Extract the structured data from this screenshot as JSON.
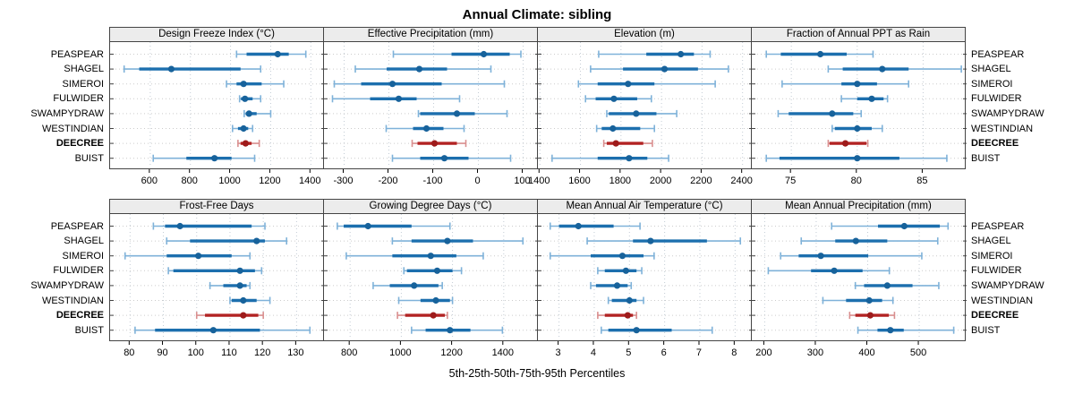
{
  "title": "Annual Climate: sibling",
  "xlabel": "5th-25th-50th-75th-95th Percentiles",
  "sites": [
    "PEASPEAR",
    "SHAGEL",
    "SIMEROI",
    "FULWIDER",
    "SWAMPYDRAW",
    "WESTINDIAN",
    "DEECREE",
    "BUIST"
  ],
  "highlight_site": "DEECREE",
  "colors": {
    "normal_range": "#7fb2d9",
    "normal_band": "#1c6fae",
    "normal_dot": "#17629b",
    "highlight_range": "#d98f8f",
    "highlight_band": "#b22222",
    "highlight_dot": "#9e1b1b",
    "panel_header_bg": "#ececec",
    "panel_border": "#444444",
    "grid_horizontal": "#cccccc",
    "grid_vertical": "#c3ccd5",
    "tick": "#000000"
  },
  "chart_data": {
    "type": "interval-dotplot",
    "note": "lattice-style percentile plot; each series value array is [p5, p25, p50, p75, p95]",
    "legend_position": "none",
    "grid": "dotted",
    "rows": [
      [
        {
          "title": "Design Freeze Index (°C)",
          "xlim": [
            400,
            1470
          ],
          "ticks": [
            600,
            800,
            1000,
            1200,
            1400
          ],
          "values": {
            "PEASPEAR": [
              1030,
              1080,
              1235,
              1290,
              1375
            ],
            "SHAGEL": [
              470,
              545,
              705,
              1050,
              1150
            ],
            "SIMEROI": [
              980,
              1030,
              1065,
              1155,
              1265
            ],
            "FULWIDER": [
              1045,
              1052,
              1072,
              1110,
              1150
            ],
            "SWAMPYDRAW": [
              1068,
              1076,
              1092,
              1130,
              1200
            ],
            "WESTINDIAN": [
              1010,
              1037,
              1065,
              1088,
              1110
            ],
            "DEECREE": [
              1037,
              1050,
              1075,
              1105,
              1143
            ],
            "BUIST": [
              615,
              780,
              920,
              1005,
              1120
            ]
          }
        },
        {
          "title": "Effective Precipitation (mm)",
          "xlim": [
            -345,
            135
          ],
          "ticks": [
            -300,
            -200,
            -100,
            0,
            100
          ],
          "values": {
            "PEASPEAR": [
              -190,
              -60,
              12,
              70,
              95
            ],
            "SHAGEL": [
              -275,
              -205,
              -132,
              -70,
              28
            ],
            "SIMEROI": [
              -322,
              -262,
              -192,
              -82,
              58
            ],
            "FULWIDER": [
              -326,
              -242,
              -178,
              -138,
              -42
            ],
            "SWAMPYDRAW": [
              -134,
              -130,
              -48,
              -8,
              64
            ],
            "WESTINDIAN": [
              -206,
              -146,
              -116,
              -78,
              -32
            ],
            "DEECREE": [
              -148,
              -136,
              -98,
              -48,
              -28
            ],
            "BUIST": [
              -192,
              -130,
              -76,
              -22,
              72
            ]
          }
        },
        {
          "title": "Elevation (m)",
          "xlim": [
            1390,
            2450
          ],
          "ticks": [
            1400,
            1600,
            1800,
            2000,
            2200,
            2400
          ],
          "values": {
            "PEASPEAR": [
              1690,
              1925,
              2095,
              2160,
              2240
            ],
            "SHAGEL": [
              1650,
              1810,
              2015,
              2180,
              2330
            ],
            "SIMEROI": [
              1590,
              1685,
              1835,
              1965,
              2265
            ],
            "FULWIDER": [
              1625,
              1675,
              1765,
              1880,
              1950
            ],
            "SWAMPYDRAW": [
              1730,
              1740,
              1875,
              1975,
              2075
            ],
            "WESTINDIAN": [
              1680,
              1705,
              1760,
              1895,
              1965
            ],
            "DEECREE": [
              1715,
              1730,
              1775,
              1910,
              1955
            ],
            "BUIST": [
              1460,
              1685,
              1840,
              1930,
              2035
            ]
          }
        },
        {
          "title": "Fraction of Annual PPT as Rain",
          "xlim": [
            72,
            88.3
          ],
          "ticks": [
            75,
            80,
            85
          ],
          "values": {
            "PEASPEAR": [
              73.1,
              74.2,
              77.2,
              79.2,
              81.2
            ],
            "SHAGEL": [
              77.8,
              78.9,
              81.9,
              83.9,
              87.9
            ],
            "SIMEROI": [
              74.3,
              78.8,
              80.0,
              81.5,
              83.9
            ],
            "FULWIDER": [
              78.8,
              80.0,
              81.1,
              82.0,
              82.3
            ],
            "SWAMPYDRAW": [
              74.0,
              74.8,
              78.1,
              79.7,
              80.3
            ],
            "WESTINDIAN": [
              78.1,
              78.3,
              80.0,
              81.1,
              81.9
            ],
            "DEECREE": [
              77.8,
              77.9,
              79.1,
              80.7,
              80.8
            ],
            "BUIST": [
              73.1,
              74.1,
              80.0,
              83.2,
              86.8
            ]
          }
        }
      ],
      [
        {
          "title": "Frost-Free Days",
          "xlim": [
            74,
            138.5
          ],
          "ticks": [
            80,
            90,
            100,
            110,
            120,
            130
          ],
          "values": {
            "PEASPEAR": [
              87,
              90.5,
              95,
              116.5,
              120.5
            ],
            "SHAGEL": [
              91,
              98,
              118,
              120.5,
              127
            ],
            "SIMEROI": [
              78.5,
              91,
              100.5,
              110.5,
              116
            ],
            "FULWIDER": [
              91.5,
              93,
              113,
              117.5,
              119.5
            ],
            "SWAMPYDRAW": [
              104,
              108,
              113,
              115,
              116
            ],
            "WESTINDIAN": [
              110,
              110.5,
              114,
              118,
              122
            ],
            "DEECREE": [
              100,
              102.5,
              114,
              118.5,
              120
            ],
            "BUIST": [
              81.5,
              87.5,
              105,
              119,
              134
            ]
          }
        },
        {
          "title": "Growing Degree Days (°C)",
          "xlim": [
            698,
            1537
          ],
          "ticks": [
            800,
            1000,
            1200,
            1400
          ],
          "values": {
            "PEASPEAR": [
              750,
              775,
              870,
              1040,
              1190
            ],
            "SHAGEL": [
              965,
              1040,
              1180,
              1280,
              1475
            ],
            "SIMEROI": [
              785,
              965,
              1115,
              1215,
              1320
            ],
            "FULWIDER": [
              1010,
              1022,
              1140,
              1200,
              1235
            ],
            "SWAMPYDRAW": [
              890,
              955,
              1050,
              1145,
              1160
            ],
            "WESTINDIAN": [
              990,
              1075,
              1135,
              1190,
              1200
            ],
            "DEECREE": [
              985,
              1015,
              1125,
              1170,
              1180
            ],
            "BUIST": [
              1040,
              1095,
              1190,
              1270,
              1395
            ]
          }
        },
        {
          "title": "Mean Annual Air Temperature (°C)",
          "xlim": [
            2.4,
            8.5
          ],
          "ticks": [
            3,
            4,
            5,
            6,
            7,
            8
          ],
          "values": {
            "PEASPEAR": [
              2.75,
              3.0,
              3.55,
              4.55,
              5.3
            ],
            "SHAGEL": [
              3.8,
              5.1,
              5.6,
              7.2,
              8.15
            ],
            "SIMEROI": [
              2.75,
              3.9,
              4.8,
              5.4,
              5.7
            ],
            "FULWIDER": [
              4.1,
              4.3,
              4.9,
              5.2,
              5.35
            ],
            "SWAMPYDRAW": [
              3.9,
              4.05,
              4.65,
              4.95,
              5.05
            ],
            "WESTINDIAN": [
              4.4,
              4.5,
              5.0,
              5.2,
              5.4
            ],
            "DEECREE": [
              4.1,
              4.3,
              4.95,
              5.1,
              5.2
            ],
            "BUIST": [
              4.2,
              4.4,
              5.2,
              6.2,
              7.35
            ]
          }
        },
        {
          "title": "Mean Annual Precipitation (mm)",
          "xlim": [
            175,
            592
          ],
          "ticks": [
            200,
            300,
            400,
            500
          ],
          "values": {
            "PEASPEAR": [
              330,
              420,
              471,
              540,
              556
            ],
            "SHAGEL": [
              271,
              337,
              377,
              438,
              536
            ],
            "SIMEROI": [
              231,
              266,
              309,
              401,
              505
            ],
            "FULWIDER": [
              207,
              290,
              335,
              390,
              442
            ],
            "SWAMPYDRAW": [
              376,
              393,
              438,
              487,
              538
            ],
            "WESTINDIAN": [
              313,
              358,
              403,
              428,
              449
            ],
            "DEECREE": [
              365,
              376,
              405,
              441,
              452
            ],
            "BUIST": [
              381,
              419,
              444,
              470,
              567
            ]
          }
        }
      ]
    ]
  }
}
